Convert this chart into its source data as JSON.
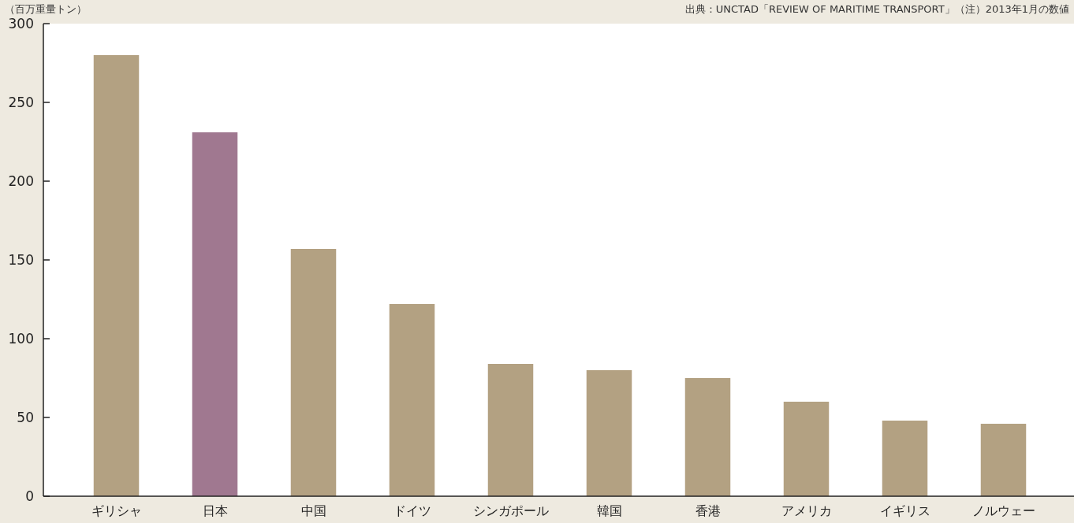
{
  "chart_data": {
    "type": "bar",
    "ylabel": "（百万重量トン）",
    "annotations": [
      "出典：UNCTAD「REVIEW OF MARITIME TRANSPORT」（注）2013年1月の数値"
    ],
    "categories": [
      "ギリシャ",
      "日本",
      "中国",
      "ドイツ",
      "シンガポール",
      "韓国",
      "香港",
      "アメリカ",
      "イギリス",
      "ノルウェー"
    ],
    "values": [
      280,
      231,
      157,
      122,
      84,
      80,
      75,
      60,
      48,
      46
    ],
    "colors": [
      "#b3a182",
      "#a07890",
      "#b3a182",
      "#b3a182",
      "#b3a182",
      "#b3a182",
      "#b3a182",
      "#b3a182",
      "#b3a182",
      "#b3a182"
    ],
    "ylim": [
      0,
      300
    ],
    "yticks": [
      0,
      50,
      100,
      150,
      200,
      250,
      300
    ],
    "grid": false
  }
}
